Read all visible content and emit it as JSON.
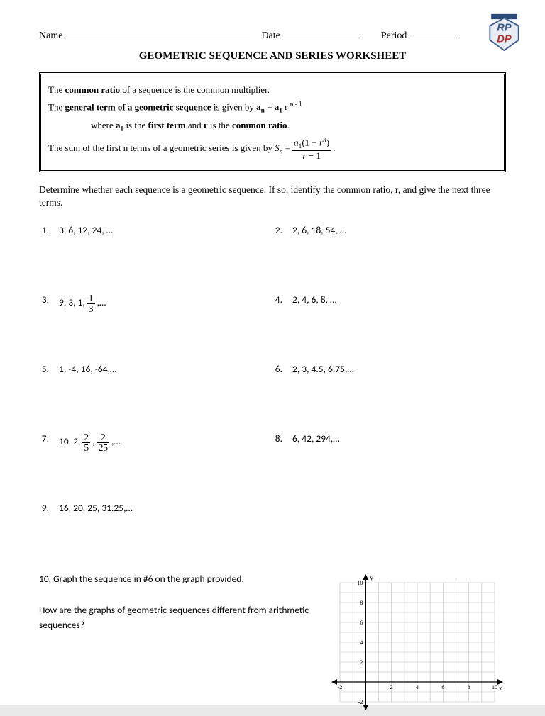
{
  "header": {
    "name_label": "Name",
    "date_label": "Date",
    "period_label": "Period"
  },
  "logo": {
    "top_text": "RP",
    "bottom_text": "DP",
    "stroke_color": "#3a5a8a",
    "fill_color": "#5a7ab0",
    "banner_color": "#2a4a7a"
  },
  "title": "GEOMETRIC SEQUENCE AND SERIES WORKSHEET",
  "box": {
    "line1_pre": "The ",
    "line1_bold": "common ratio",
    "line1_post": " of a sequence is the common multiplier.",
    "line2_pre": "The ",
    "line2_bold": "general term of a geometric sequence",
    "line2_post": " is given by ",
    "line2_formula": "aₙ = a₁ r ⁿ⁻¹",
    "line3_pre": "where ",
    "line3_b1": "a₁",
    "line3_mid": " is the ",
    "line3_b2": "first term",
    "line3_mid2": " and ",
    "line3_b3": "r",
    "line3_mid3": " is the ",
    "line3_b4": "common ratio",
    "line3_end": ".",
    "line4_pre": "The sum of the first n terms of a geometric series is given by ",
    "sum_formula": {
      "lhs": "Sₙ = ",
      "num": "a₁(1 − rⁿ)",
      "den": "r − 1",
      "end": " ."
    }
  },
  "instructions": "Determine whether each sequence is a geometric sequence.  If so, identify the common ratio, r, and give the next three terms.",
  "problems": [
    {
      "n": "1.",
      "text": "3, 6, 12, 24, …"
    },
    {
      "n": "2.",
      "text": "2, 6, 18, 54, …"
    },
    {
      "n": "3.",
      "text_html": "9, 3, 1, <span class=\"frac\"><span class=\"num\">1</span><span class=\"den\">3</span></span> ,…"
    },
    {
      "n": "4.",
      "text": "2, 4, 6, 8, …"
    },
    {
      "n": "5.",
      "text": "1, -4, 16, -64,…"
    },
    {
      "n": "6.",
      "text": "2, 3, 4.5, 6.75,…"
    },
    {
      "n": "7.",
      "text_html": "10, 2, <span class=\"frac\"><span class=\"num\">2</span><span class=\"den\">5</span></span> , <span class=\"frac\"><span class=\"num\">2</span><span class=\"den\">25</span></span> ,…"
    },
    {
      "n": "8.",
      "text": "6, 42, 294,…"
    },
    {
      "n": "9.",
      "text": "16, 20, 25, 31.25,…"
    }
  ],
  "q10": {
    "line1": "10.  Graph the sequence in #6 on the graph provided.",
    "line2": "How are the graphs of geometric sequences different from arithmetic sequences?"
  },
  "graph": {
    "xmin": -2,
    "xmax": 10,
    "ymin": -2,
    "ymax": 10,
    "grid_step": 1,
    "tick_step": 2,
    "grid_color": "#b8b8b8",
    "axis_color": "#000000",
    "tick_fontsize": 8,
    "label_y": "y",
    "label_x": "x",
    "x_ticks": [
      -2,
      2,
      4,
      6,
      8,
      10
    ],
    "y_ticks": [
      -2,
      2,
      4,
      6,
      8,
      10
    ]
  },
  "colors": {
    "text": "#000000",
    "page_bg": "#ffffff"
  }
}
